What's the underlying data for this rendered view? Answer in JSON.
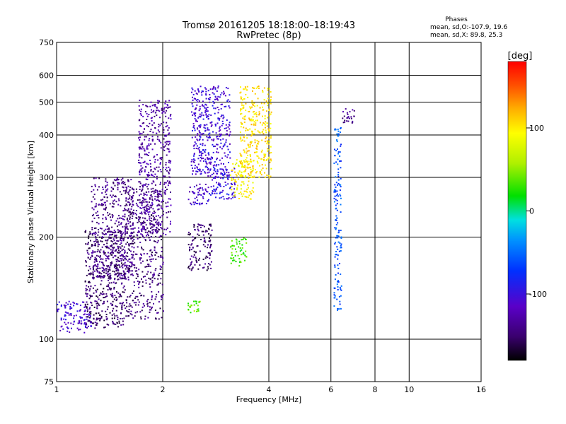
{
  "title_line1": "Tromsø 20161205 18:18:00–18:19:43",
  "title_line2": "RwPretec (8p)",
  "phases": {
    "heading": "Phases",
    "line_o": "mean, sd,O:-107.9, 19.6",
    "line_x": "mean, sd,X: 89.8, 25.3"
  },
  "colorbar": {
    "label": "[deg]",
    "ticks": [
      "100",
      "0",
      "-100"
    ],
    "tick_values": [
      100,
      0,
      -100
    ],
    "range": [
      -180,
      180
    ],
    "colors": [
      "#000000",
      "#3a006e",
      "#5a00c8",
      "#0030ff",
      "#0090ff",
      "#00e0e0",
      "#00e000",
      "#b0f000",
      "#ffff00",
      "#ffb000",
      "#ff5000",
      "#ff0000"
    ]
  },
  "chart_data": {
    "type": "scatter",
    "title": "Tromsø 20161205 18:18:00–18:19:43 RwPretec (8p)",
    "xlabel": "Frequency [MHz]",
    "ylabel": "Stationary phase Virtual Height [km]",
    "x_scale": "log",
    "y_scale": "log",
    "xlim": [
      1,
      16
    ],
    "ylim": [
      75,
      750
    ],
    "x_ticks": [
      1,
      2,
      4,
      6,
      8,
      10,
      16
    ],
    "x_tick_labels": [
      "1",
      "2",
      "4",
      "6",
      "8",
      "10",
      "16"
    ],
    "y_ticks": [
      75,
      100,
      200,
      300,
      400,
      500,
      600,
      750
    ],
    "y_tick_labels": [
      "75",
      "100",
      "200",
      "300",
      "400",
      "500",
      "600",
      "750"
    ],
    "grid": true,
    "color_variable": "phase [deg]",
    "clusters": [
      {
        "x": [
          1.0,
          1.25
        ],
        "y": [
          105,
          130
        ],
        "phase": -110
      },
      {
        "x": [
          1.2,
          1.55
        ],
        "y": [
          108,
          210
        ],
        "phase": -150
      },
      {
        "x": [
          1.25,
          1.65
        ],
        "y": [
          150,
          300
        ],
        "phase": -140
      },
      {
        "x": [
          1.55,
          2.0
        ],
        "y": [
          115,
          280
        ],
        "phase": -145
      },
      {
        "x": [
          1.7,
          2.1
        ],
        "y": [
          200,
          510
        ],
        "phase": -130
      },
      {
        "x": [
          2.35,
          2.7
        ],
        "y": [
          250,
          290
        ],
        "phase": -115
      },
      {
        "x": [
          2.35,
          2.75
        ],
        "y": [
          160,
          220
        ],
        "phase": -150
      },
      {
        "x": [
          2.4,
          3.1
        ],
        "y": [
          300,
          560
        ],
        "phase": -105
      },
      {
        "x": [
          2.7,
          3.2
        ],
        "y": [
          260,
          320
        ],
        "phase": -100
      },
      {
        "x": [
          3.1,
          3.6
        ],
        "y": [
          260,
          340
        ],
        "phase": 95
      },
      {
        "x": [
          3.3,
          4.05
        ],
        "y": [
          300,
          560
        ],
        "phase": 105
      },
      {
        "x": [
          3.1,
          3.45
        ],
        "y": [
          165,
          200
        ],
        "phase": 30
      },
      {
        "x": [
          2.35,
          2.55
        ],
        "y": [
          120,
          130
        ],
        "phase": 40
      },
      {
        "x": [
          6.1,
          6.4
        ],
        "y": [
          120,
          430
        ],
        "phase": -60
      },
      {
        "x": [
          6.4,
          7.0
        ],
        "y": [
          430,
          480
        ],
        "phase": -140
      }
    ]
  }
}
